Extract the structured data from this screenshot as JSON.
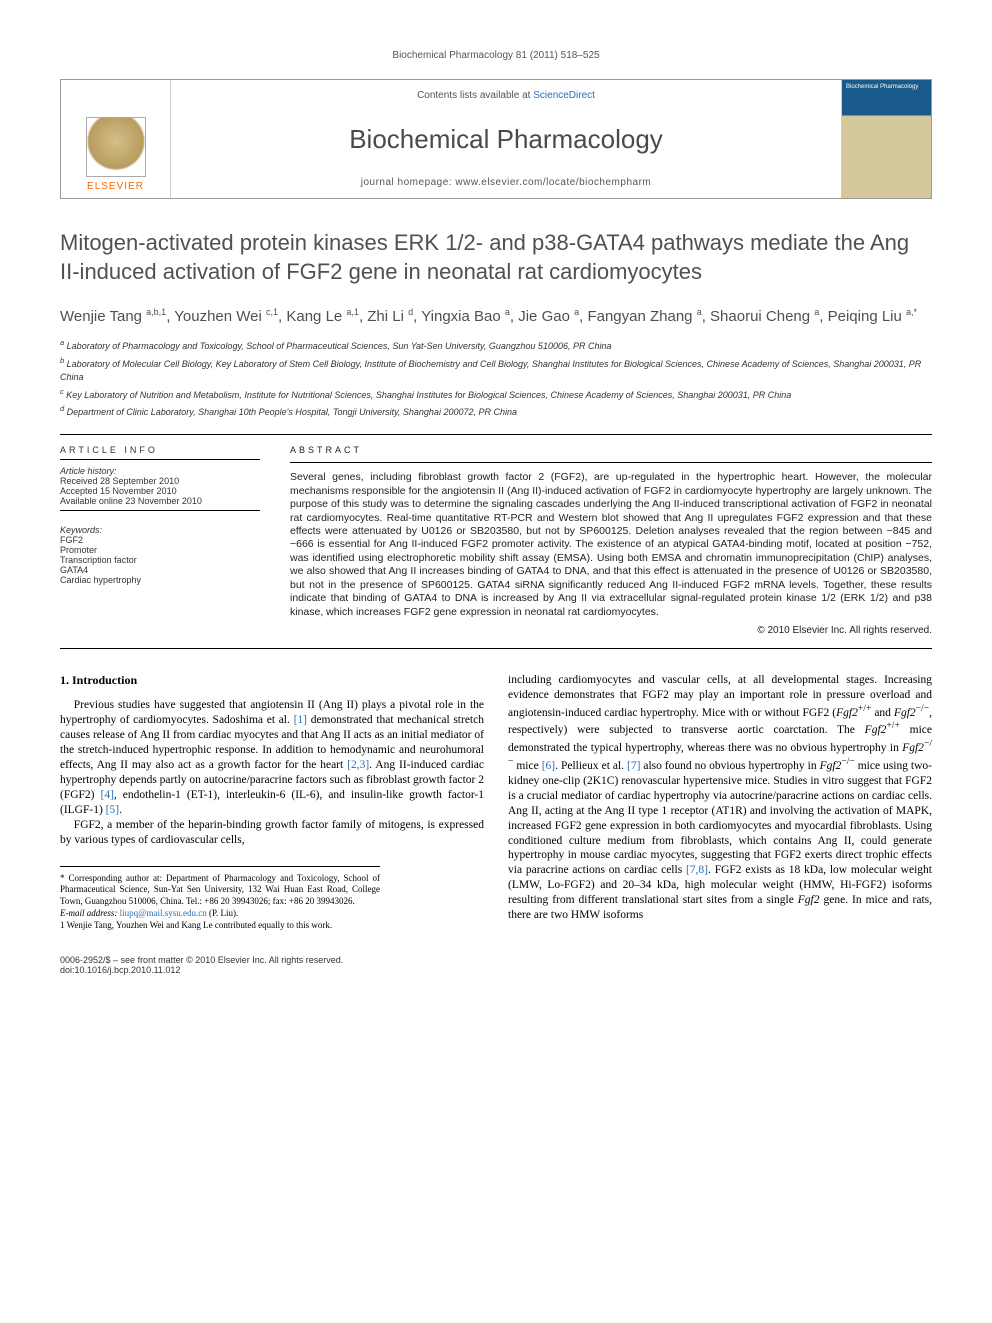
{
  "running_head": "Biochemical Pharmacology 81 (2011) 518–525",
  "banner": {
    "contents_prefix": "Contents lists available at ",
    "contents_link": "ScienceDirect",
    "journal": "Biochemical Pharmacology",
    "homepage_prefix": "journal homepage: ",
    "homepage_url": "www.elsevier.com/locate/biochempharm",
    "publisher": "ELSEVIER"
  },
  "title": "Mitogen-activated protein kinases ERK 1/2- and p38-GATA4 pathways mediate the Ang II-induced activation of FGF2 gene in neonatal rat cardiomyocytes",
  "authors_html": "Wenjie Tang <sup>a,b,1</sup>, Youzhen Wei <sup>c,1</sup>, Kang Le <sup>a,1</sup>, Zhi Li <sup>d</sup>, Yingxia Bao <sup>a</sup>, Jie Gao <sup>a</sup>, Fangyan Zhang <sup>a</sup>, Shaorui Cheng <sup>a</sup>, Peiqing Liu <sup>a,*</sup>",
  "affiliations": [
    "a Laboratory of Pharmacology and Toxicology, School of Pharmaceutical Sciences, Sun Yat-Sen University, Guangzhou 510006, PR China",
    "b Laboratory of Molecular Cell Biology, Key Laboratory of Stem Cell Biology, Institute of Biochemistry and Cell Biology, Shanghai Institutes for Biological Sciences, Chinese Academy of Sciences, Shanghai 200031, PR China",
    "c Key Laboratory of Nutrition and Metabolism, Institute for Nutritional Sciences, Shanghai Institutes for Biological Sciences, Chinese Academy of Sciences, Shanghai 200031, PR China",
    "d Department of Clinic Laboratory, Shanghai 10th People's Hospital, Tongji University, Shanghai 200072, PR China"
  ],
  "article_info": {
    "heading": "ARTICLE INFO",
    "history_label": "Article history:",
    "received": "Received 28 September 2010",
    "accepted": "Accepted 15 November 2010",
    "online": "Available online 23 November 2010",
    "keywords_label": "Keywords:",
    "keywords": [
      "FGF2",
      "Promoter",
      "Transcription factor",
      "GATA4",
      "Cardiac hypertrophy"
    ]
  },
  "abstract": {
    "heading": "ABSTRACT",
    "text": "Several genes, including fibroblast growth factor 2 (FGF2), are up-regulated in the hypertrophic heart. However, the molecular mechanisms responsible for the angiotensin II (Ang II)-induced activation of FGF2 in cardiomyocyte hypertrophy are largely unknown. The purpose of this study was to determine the signaling cascades underlying the Ang II-induced transcriptional activation of FGF2 in neonatal rat cardiomyocytes. Real-time quantitative RT-PCR and Western blot showed that Ang II upregulates FGF2 expression and that these effects were attenuated by U0126 or SB203580, but not by SP600125. Deletion analyses revealed that the region between −845 and −666 is essential for Ang II-induced FGF2 promoter activity. The existence of an atypical GATA4-binding motif, located at position −752, was identified using electrophoretic mobility shift assay (EMSA). Using both EMSA and chromatin immunoprecipitation (ChIP) analyses, we also showed that Ang II increases binding of GATA4 to DNA, and that this effect is attenuated in the presence of U0126 or SB203580, but not in the presence of SP600125. GATA4 siRNA significantly reduced Ang II-induced FGF2 mRNA levels. Together, these results indicate that binding of GATA4 to DNA is increased by Ang II via extracellular signal-regulated protein kinase 1/2 (ERK 1/2) and p38 kinase, which increases FGF2 gene expression in neonatal rat cardiomyocytes.",
    "copyright": "© 2010 Elsevier Inc. All rights reserved."
  },
  "body": {
    "section_heading": "1. Introduction",
    "col1_p1": "Previous studies have suggested that angiotensin II (Ang II) plays a pivotal role in the hypertrophy of cardiomyocytes. Sadoshima et al. [1] demonstrated that mechanical stretch causes release of Ang II from cardiac myocytes and that Ang II acts as an initial mediator of the stretch-induced hypertrophic response. In addition to hemodynamic and neurohumoral effects, Ang II may also act as a growth factor for the heart [2,3]. Ang II-induced cardiac hypertrophy depends partly on autocrine/paracrine factors such as fibroblast growth factor 2 (FGF2) [4], endothelin-1 (ET-1), interleukin-6 (IL-6), and insulin-like growth factor-1 (ILGF-1) [5].",
    "col1_p2": "FGF2, a member of the heparin-binding growth factor family of mitogens, is expressed by various types of cardiovascular cells,",
    "col2_p1": "including cardiomyocytes and vascular cells, at all developmental stages. Increasing evidence demonstrates that FGF2 may play an important role in pressure overload and angiotensin-induced cardiac hypertrophy. Mice with or without FGF2 (Fgf2+/+ and Fgf2−/−, respectively) were subjected to transverse aortic coarctation. The Fgf2+/+ mice demonstrated the typical hypertrophy, whereas there was no obvious hypertrophy in Fgf2−/− mice [6]. Pellieux et al. [7] also found no obvious hypertrophy in Fgf2−/− mice using two-kidney one-clip (2K1C) renovascular hypertensive mice. Studies in vitro suggest that FGF2 is a crucial mediator of cardiac hypertrophy via autocrine/paracrine actions on cardiac cells. Ang II, acting at the Ang II type 1 receptor (AT1R) and involving the activation of MAPK, increased FGF2 gene expression in both cardiomyocytes and myocardial fibroblasts. Using conditioned culture medium from fibroblasts, which contains Ang II, could generate hypertrophy in mouse cardiac myocytes, suggesting that FGF2 exerts direct trophic effects via paracrine actions on cardiac cells [7,8]. FGF2 exists as 18 kDa, low molecular weight (LMW, Lo-FGF2) and 20–34 kDa, high molecular weight (HMW, Hi-FGF2) isoforms resulting from different translational start sites from a single Fgf2 gene. In mice and rats, there are two HMW isoforms"
  },
  "footnotes": {
    "corr": "* Corresponding author at: Department of Pharmacology and Toxicology, School of Pharmaceutical Science, Sun-Yat Sen University, 132 Wai Huan East Road, College Town, Guangzhou 510006, China. Tel.: +86 20 39943026; fax: +86 20 39943026.",
    "email_label": "E-mail address: ",
    "email": "liupq@mail.sysu.edu.cn",
    "email_tail": " (P. Liu).",
    "equal": "1 Wenjie Tang, Youzhen Wei and Kang Le contributed equally to this work."
  },
  "footer": {
    "line1": "0006-2952/$ – see front matter © 2010 Elsevier Inc. All rights reserved.",
    "line2": "doi:10.1016/j.bcp.2010.11.012"
  },
  "colors": {
    "link": "#2a6fb5",
    "heading_gray": "#505050",
    "orange": "#ff6600"
  }
}
